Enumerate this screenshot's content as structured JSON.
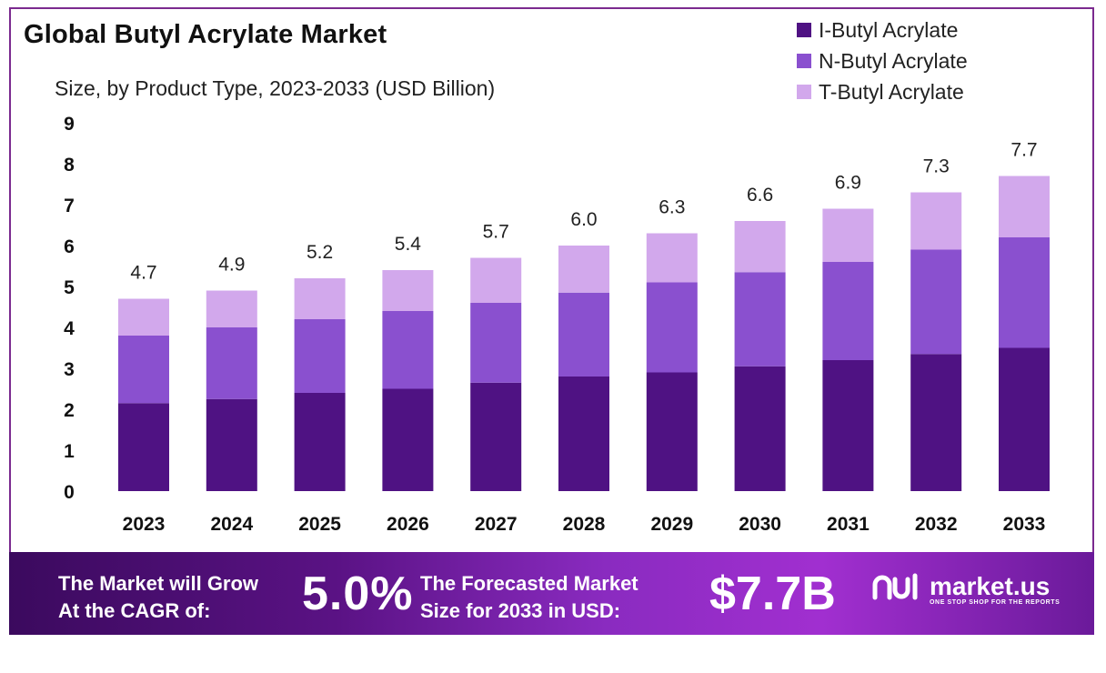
{
  "title": "Global Butyl Acrylate Market",
  "subtitle": "Size, by Product Type, 2023-2033 (USD Billion)",
  "colors": {
    "i_butyl": "#4f1283",
    "n_butyl": "#8a50cf",
    "t_butyl": "#d2a8ec",
    "frame": "#7b2a8f"
  },
  "legend": [
    {
      "label": "I-Butyl Acrylate",
      "color": "#4f1283"
    },
    {
      "label": "N-Butyl Acrylate",
      "color": "#8a50cf"
    },
    {
      "label": "T-Butyl Acrylate",
      "color": "#d2a8ec"
    }
  ],
  "chart_data": {
    "type": "bar",
    "stacked": true,
    "title": "Global Butyl Acrylate Market",
    "subtitle": "Size, by Product Type, 2023-2033 (USD Billion)",
    "xlabel": "",
    "ylabel": "",
    "ylim": [
      0,
      9
    ],
    "yticks": [
      "0",
      "1",
      "2",
      "3",
      "4",
      "5",
      "6",
      "7",
      "8",
      "9"
    ],
    "categories": [
      "2023",
      "2024",
      "2025",
      "2026",
      "2027",
      "2028",
      "2029",
      "2030",
      "2031",
      "2032",
      "2033"
    ],
    "series": [
      {
        "name": "I-Butyl Acrylate",
        "values": [
          2.15,
          2.25,
          2.4,
          2.5,
          2.65,
          2.8,
          2.9,
          3.05,
          3.2,
          3.35,
          3.5
        ]
      },
      {
        "name": "N-Butyl Acrylate",
        "values": [
          1.65,
          1.75,
          1.8,
          1.9,
          1.95,
          2.05,
          2.2,
          2.3,
          2.4,
          2.55,
          2.7
        ]
      },
      {
        "name": "T-Butyl Acrylate",
        "values": [
          0.9,
          0.9,
          1.0,
          1.0,
          1.1,
          1.15,
          1.2,
          1.25,
          1.3,
          1.4,
          1.5
        ]
      }
    ],
    "totals": [
      "4.7",
      "4.9",
      "5.2",
      "5.4",
      "5.7",
      "6.0",
      "6.3",
      "6.6",
      "6.9",
      "7.3",
      "7.7"
    ],
    "legend_position": "top-right",
    "grid": false
  },
  "footer": {
    "cagr_text_line1": "The Market will Grow",
    "cagr_text_line2": "At the CAGR of:",
    "cagr_value": "5.0%",
    "forecast_text_line1": "The Forecasted Market",
    "forecast_text_line2": "Size for 2033 in USD:",
    "forecast_value": "$7.7B",
    "brand_name": "market.us",
    "brand_tagline": "ONE STOP SHOP FOR THE REPORTS"
  }
}
